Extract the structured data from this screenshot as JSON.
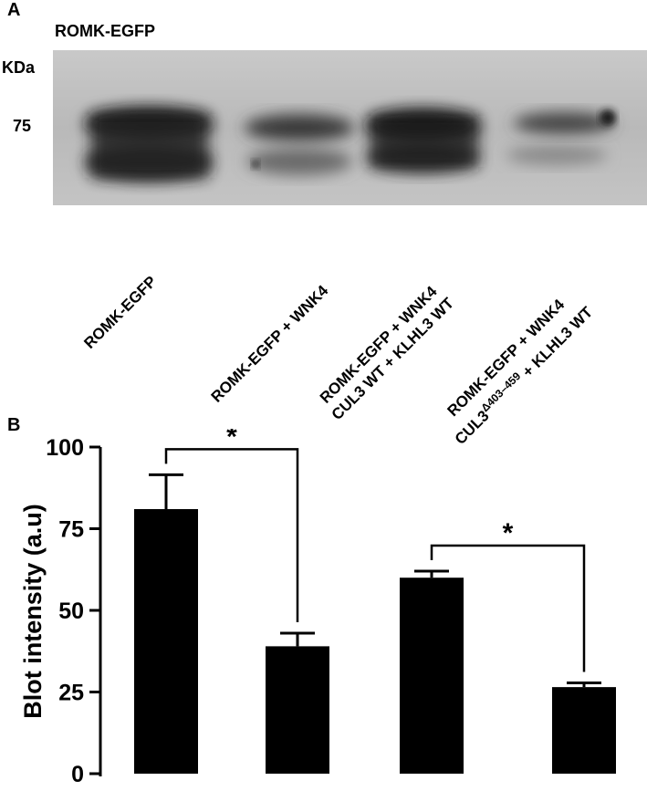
{
  "panel_a": {
    "letter": "A",
    "title": "ROMK-EGFP",
    "unit_label": "KDa",
    "marker_label": "75",
    "lanes": [
      {
        "line1": "ROMK-EGFP",
        "line2": ""
      },
      {
        "line1": "ROMK-EGFP + WNK4",
        "line2": ""
      },
      {
        "line1": "ROMK-EGFP + WNK4",
        "line2": "CUL3 WT + KLHL3 WT"
      },
      {
        "line1": "ROMK-EGFP + WNK4",
        "line2_pre": "CUL3",
        "line2_sup": "Δ403–459",
        "line2_post": " + KLHL3 WT"
      }
    ]
  },
  "panel_b": {
    "letter": "B"
  },
  "chart_data": {
    "type": "bar",
    "ylabel": "Blot intensity (a.u)",
    "ylim": [
      0,
      100
    ],
    "yticks": [
      0,
      25,
      50,
      75,
      100
    ],
    "categories": [
      "ROMK-EGFP",
      "ROMK-EGFP + WNK4",
      "ROMK-EGFP + WNK4 CUL3 WT + KLHL3 WT",
      "ROMK-EGFP + WNK4 CUL3Δ403–459 + KLHL3 WT"
    ],
    "values": [
      81,
      39,
      60,
      26.5
    ],
    "errors": [
      10.5,
      4,
      2,
      1.3
    ],
    "bar_color": "#000000",
    "significance": [
      {
        "from": 0,
        "to": 1,
        "label": "*"
      },
      {
        "from": 2,
        "to": 3,
        "label": "*"
      }
    ]
  }
}
